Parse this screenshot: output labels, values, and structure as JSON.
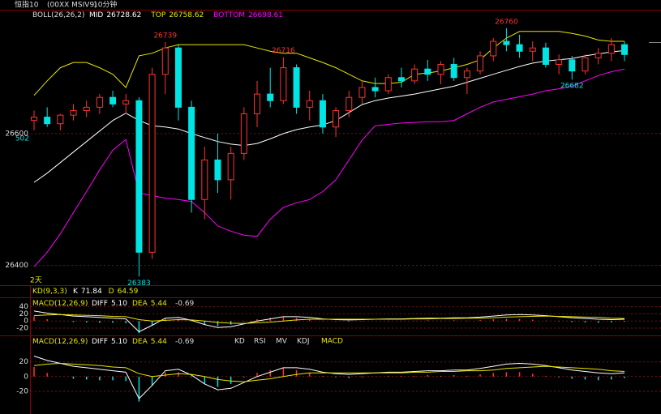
{
  "header": {
    "symbol": "恒指10",
    "code": "(00XX MSIV9)",
    "period": "10分钟"
  },
  "chart_data": [
    {
      "type": "candlestick",
      "title": "BOLL(26,26,2)",
      "ylim": [
        26370,
        26788
      ],
      "yticks": [
        26400,
        26600
      ],
      "grid": true,
      "up_color": "#ff3232",
      "down_color": "#00e4e4",
      "cursor_price": "502",
      "time_label": "2天",
      "annotations": [
        26739,
        26716,
        26760,
        26682,
        26383
      ],
      "open": [
        26620,
        26625,
        26615,
        26628,
        26635,
        26640,
        26655,
        26645,
        26650,
        26420,
        26690,
        26730,
        26640,
        26500,
        26560,
        26530,
        26570,
        26630,
        26660,
        26650,
        26700,
        26640,
        26650,
        26610,
        26635,
        26655,
        26670,
        26665,
        26685,
        26680,
        26698,
        26690,
        26705,
        26685,
        26695,
        26718,
        26740,
        26735,
        26725,
        26730,
        26705,
        26712,
        26695,
        26715,
        26722,
        26735
      ],
      "high": [
        26635,
        26640,
        26630,
        26645,
        26650,
        26660,
        26665,
        26660,
        26655,
        26700,
        26739,
        26735,
        26650,
        26580,
        26600,
        26580,
        26640,
        26680,
        26700,
        26716,
        26705,
        26665,
        26660,
        26640,
        26665,
        26680,
        26685,
        26690,
        26700,
        26705,
        26712,
        26710,
        26715,
        26700,
        26725,
        26745,
        26760,
        26750,
        26740,
        26738,
        26720,
        26718,
        26720,
        26730,
        26745,
        26740
      ],
      "low": [
        26605,
        26610,
        26605,
        26620,
        26625,
        26630,
        26640,
        26630,
        26383,
        26410,
        26660,
        26620,
        26480,
        26470,
        26510,
        26500,
        26560,
        26610,
        26640,
        26645,
        26630,
        26620,
        26600,
        26595,
        26625,
        26645,
        26655,
        26660,
        26670,
        26675,
        26680,
        26675,
        26680,
        26660,
        26690,
        26710,
        26725,
        26715,
        26710,
        26700,
        26690,
        26682,
        26690,
        26705,
        26710,
        26710
      ],
      "close": [
        26625,
        26615,
        26628,
        26635,
        26640,
        26655,
        26645,
        26650,
        26420,
        26690,
        26730,
        26640,
        26500,
        26560,
        26530,
        26570,
        26630,
        26660,
        26650,
        26700,
        26640,
        26650,
        26610,
        26635,
        26655,
        26670,
        26665,
        26685,
        26680,
        26698,
        26690,
        26705,
        26685,
        26695,
        26718,
        26740,
        26735,
        26725,
        26730,
        26705,
        26712,
        26695,
        26715,
        26722,
        26735,
        26720
      ],
      "series": [
        {
          "name": "MID",
          "color": "#ffffff",
          "current": 26728.62,
          "values": [
            26526,
            26540,
            26556,
            26572,
            26588,
            26604,
            26620,
            26631,
            26620,
            26612,
            26610,
            26607,
            26600,
            26594,
            26588,
            26584,
            26582,
            26585,
            26592,
            26600,
            26606,
            26610,
            26613,
            26620,
            26632,
            26644,
            26650,
            26654,
            26657,
            26660,
            26664,
            26668,
            26672,
            26678,
            26684,
            26690,
            26696,
            26702,
            26707,
            26710,
            26712,
            26714,
            26718,
            26721,
            26724,
            26726
          ]
        },
        {
          "name": "TOP",
          "color": "#e8e800",
          "current": 26758.62,
          "values": [
            26658,
            26680,
            26700,
            26708,
            26708,
            26700,
            26690,
            26670,
            26718,
            26722,
            26730,
            26735,
            26735,
            26735,
            26735,
            26735,
            26735,
            26730,
            26725,
            26722,
            26722,
            26715,
            26708,
            26700,
            26690,
            26680,
            26676,
            26676,
            26678,
            26690,
            26692,
            26695,
            26700,
            26705,
            26712,
            26730,
            26745,
            26755,
            26755,
            26755,
            26755,
            26752,
            26748,
            26742,
            26740,
            26740
          ]
        },
        {
          "name": "BOTTOM",
          "color": "#ff00ff",
          "current": 26698.61,
          "values": [
            26398,
            26420,
            26448,
            26480,
            26512,
            26545,
            26575,
            26591,
            26510,
            26506,
            26502,
            26500,
            26497,
            26480,
            26460,
            26452,
            26446,
            26444,
            26470,
            26488,
            26495,
            26500,
            26512,
            26530,
            26560,
            26590,
            26612,
            26614,
            26616,
            26617,
            26618,
            26618,
            26620,
            26630,
            26640,
            26648,
            26652,
            26656,
            26660,
            26665,
            26668,
            26672,
            26680,
            26688,
            26694,
            26698
          ]
        }
      ]
    },
    {
      "type": "kd",
      "title": "KD(9,3,3)",
      "series": [
        {
          "name": "K",
          "color": "#ffffff",
          "current": 71.84
        },
        {
          "name": "D",
          "color": "#e8e800",
          "current": 64.59
        }
      ]
    },
    {
      "type": "macd",
      "title": "MACD(12,26,9)",
      "ylim": [
        -38,
        64
      ],
      "yticks": [
        40,
        20,
        0,
        -20
      ],
      "grid": true,
      "up_color": "#ff3232",
      "down_color": "#00e4e4",
      "histogram": {
        "current": -0.69,
        "values": [
          13,
          5,
          0,
          -3,
          -4,
          -5,
          -5,
          -6,
          -34,
          -12,
          6,
          6,
          -1,
          -10,
          -14,
          -10,
          -1,
          5,
          9,
          12,
          9,
          5,
          1,
          -1,
          -2,
          -1,
          0,
          1,
          1,
          1,
          2,
          1,
          2,
          1,
          3,
          5,
          6,
          6,
          4,
          1,
          -1,
          -3,
          -4,
          -5,
          -4,
          -2
        ]
      },
      "series": [
        {
          "name": "DIFF",
          "color": "#ffffff",
          "current": "5.10",
          "values": [
            28,
            22,
            18,
            14,
            12,
            10,
            8,
            6,
            -30,
            -12,
            8,
            10,
            2,
            -10,
            -18,
            -16,
            -8,
            0,
            6,
            12,
            12,
            10,
            6,
            4,
            3,
            4,
            5,
            6,
            6,
            7,
            8,
            8,
            9,
            9,
            11,
            14,
            17,
            18,
            17,
            15,
            12,
            9,
            7,
            5,
            4,
            5
          ]
        },
        {
          "name": "DEA",
          "color": "#e8e800",
          "current": 5.44,
          "values": [
            15,
            17,
            18,
            17,
            16,
            15,
            13,
            12,
            4,
            0,
            2,
            4,
            3,
            0,
            -4,
            -6,
            -7,
            -5,
            -3,
            0,
            3,
            5,
            5,
            5,
            5,
            5,
            5,
            5,
            5,
            6,
            6,
            7,
            7,
            8,
            8,
            9,
            11,
            12,
            13,
            14,
            13,
            12,
            11,
            10,
            8,
            7
          ]
        }
      ]
    },
    {
      "type": "macd",
      "ylim": [
        -51,
        55
      ],
      "yticks": [
        20,
        0,
        -20
      ],
      "grid": true,
      "tabs": [
        "KD",
        "RSI",
        "MV",
        "KDJ",
        "MACD"
      ],
      "active_tab": 4
    }
  ]
}
